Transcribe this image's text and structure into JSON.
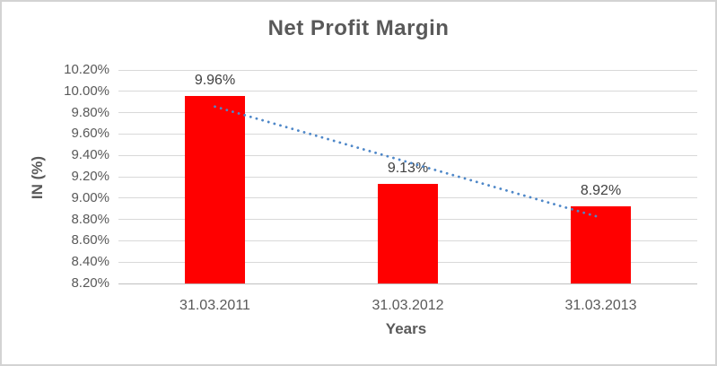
{
  "chart": {
    "title": "Net Profit Margin",
    "y_axis_title": "IN (%)",
    "x_axis_title": "Years"
  },
  "chart_data": {
    "type": "bar",
    "title": "Net Profit Margin",
    "xlabel": "Years",
    "ylabel": "IN (%)",
    "categories": [
      "31.03.2011",
      "31.03.2012",
      "31.03.2013"
    ],
    "series": [
      {
        "name": "Net Profit Margin",
        "values": [
          9.96,
          9.13,
          8.92
        ],
        "color": "#ff0000"
      }
    ],
    "data_labels": [
      "9.96%",
      "9.13%",
      "8.92%"
    ],
    "ylim": [
      8.2,
      10.2
    ],
    "ytick_step": 0.2,
    "ytick_labels": [
      "10.20%",
      "10.00%",
      "9.80%",
      "9.60%",
      "9.40%",
      "9.20%",
      "9.00%",
      "8.80%",
      "8.60%",
      "8.40%",
      "8.20%"
    ],
    "grid": true,
    "legend": false,
    "trendline": {
      "type": "linear",
      "style": "dotted",
      "color": "#4e87c8",
      "fit_values": [
        9.857,
        9.337,
        8.817
      ]
    }
  },
  "colors": {
    "bar": "#ff0000",
    "trendline": "#4e87c8",
    "gridline": "#d9d9d9",
    "axis_line": "#bfbfbf",
    "tick_text": "#595959",
    "title_text": "#595959",
    "data_label_text": "#404040",
    "canvas_border": "#d3d3d3"
  }
}
